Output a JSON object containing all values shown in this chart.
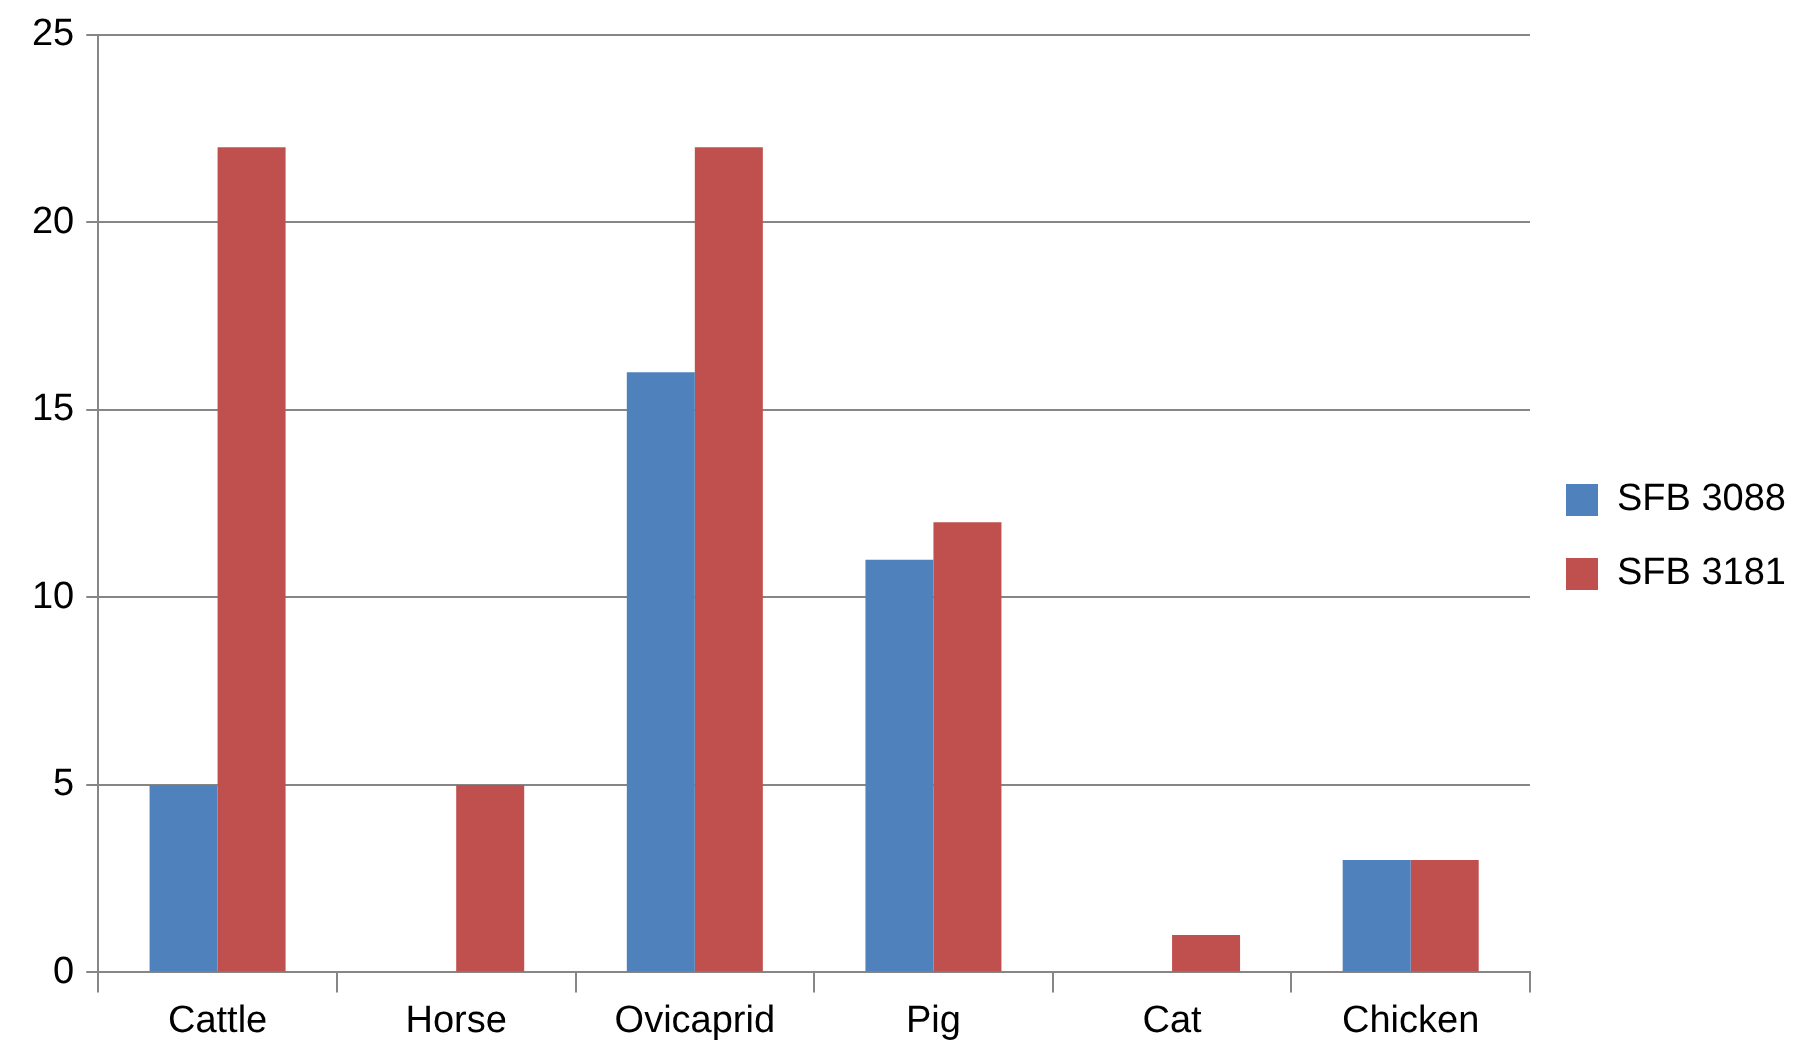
{
  "chart_data": {
    "type": "bar",
    "categories": [
      "Cattle",
      "Horse",
      "Ovicaprid",
      "Pig",
      "Cat",
      "Chicken"
    ],
    "series": [
      {
        "name": "SFB 3088",
        "color": "#4f81bd",
        "values": [
          5,
          0,
          16,
          11,
          0,
          3
        ]
      },
      {
        "name": "SFB 3181",
        "color": "#c0504d",
        "values": [
          22,
          5,
          22,
          12,
          1,
          3
        ]
      }
    ],
    "ylim": [
      0,
      25
    ],
    "yticks": [
      0,
      5,
      10,
      15,
      20,
      25
    ],
    "grid": "y",
    "legend": "right"
  }
}
